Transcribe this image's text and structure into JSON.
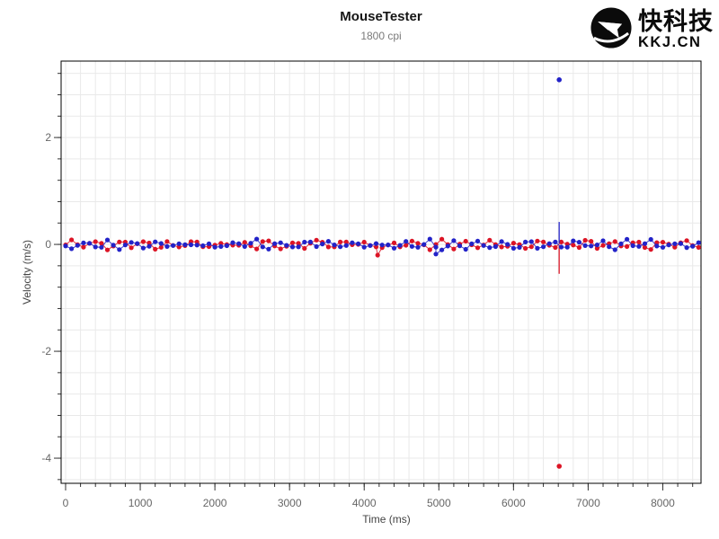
{
  "header": {
    "title": "MouseTester",
    "subtitle": "1800 cpi"
  },
  "logo": {
    "brand_cn": "快科技",
    "brand_domain": "KKJ.CN"
  },
  "chart_data": {
    "type": "line-scatter",
    "title": "MouseTester",
    "subtitle": "1800 cpi",
    "xlabel": "Time (ms)",
    "ylabel": "Velocity (m/s)",
    "xlim": [
      -60,
      8512
    ],
    "ylim": [
      -4.47,
      3.43
    ],
    "x_major_values": [
      0,
      1000,
      2000,
      3000,
      4000,
      5000,
      6000,
      7000,
      8000
    ],
    "x_major_labels": [
      "0",
      "1000",
      "2000",
      "3000",
      "4000",
      "5000",
      "6000",
      "7000",
      "8000"
    ],
    "x_minor": {
      "start": 0,
      "step": 200,
      "count": 43
    },
    "y_major_values": [
      2,
      0,
      -2,
      -4
    ],
    "y_major_labels": [
      "2",
      "0",
      "-2",
      "-4"
    ],
    "y_minor": {
      "start": -4.4,
      "step": 0.4,
      "count": 20
    },
    "grid": true,
    "grid_color": "#e9e9e9",
    "axis_color": "#000000",
    "tick_color": "#333333",
    "tick_label_color": "#666666",
    "axis_title_color": "#444444",
    "background_color": "#ffffff",
    "point_radius_px": 2.6,
    "series": [
      {
        "name": "series-red",
        "color": "#dc1425",
        "baseline": {
          "t_start": 0,
          "t_end": 8505,
          "t_step": 80,
          "amplitude": 0.055,
          "period_ms": 330,
          "phase_rad": 0.3,
          "jitter": 0.04,
          "amp_mod_period_ms": 2300,
          "amp_mod_depth": 0.35,
          "bias": -0.005,
          "seed": 29
        },
        "extra_points": [
          [
            4180,
            -0.2
          ]
        ],
        "spike": {
          "t": 6612,
          "v_from": -0.02,
          "v_to": -0.55
        },
        "outlier_points": [
          [
            6612,
            -4.15
          ]
        ]
      },
      {
        "name": "series-blue",
        "color": "#2222c8",
        "baseline": {
          "t_start": 0,
          "t_end": 8505,
          "t_step": 80,
          "amplitude": 0.055,
          "period_ms": 330,
          "phase_rad": 3.2,
          "jitter": 0.04,
          "amp_mod_period_ms": 2300,
          "amp_mod_depth": 0.35,
          "bias": -0.005,
          "seed": 11
        },
        "extra_points": [
          [
            4960,
            -0.18
          ]
        ],
        "spike": {
          "t": 6612,
          "v_from": 0.02,
          "v_to": 0.42
        },
        "outlier_points": [
          [
            6612,
            3.08
          ]
        ]
      }
    ]
  }
}
